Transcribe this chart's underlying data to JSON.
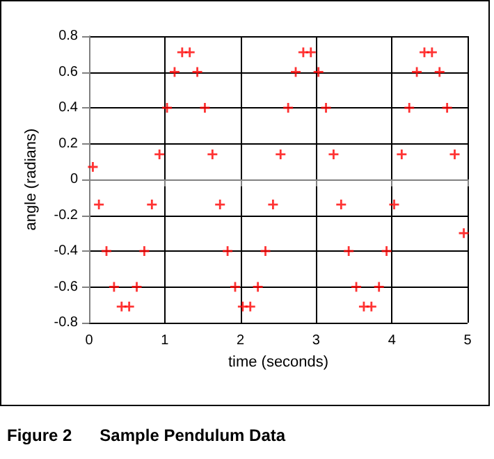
{
  "chart_data": {
    "type": "scatter",
    "title": "Figure 2      Sample Pendulum Data",
    "xlabel": "time (seconds)",
    "ylabel": "angle (radians)",
    "marker": "cross",
    "grid": true,
    "xlim": [
      0,
      5
    ],
    "xticks": [
      0,
      1,
      2,
      3,
      4,
      5
    ],
    "ylim": [
      -0.8,
      0.8
    ],
    "yticks": [
      -0.8,
      -0.6,
      -0.4,
      -0.2,
      0,
      0.2,
      0.4,
      0.6,
      0.8
    ],
    "series": [
      {
        "color": "#ff0000",
        "x": [
          0.05,
          0.13,
          0.23,
          0.33,
          0.43,
          0.53,
          0.63,
          0.73,
          0.83,
          0.93,
          1.03,
          1.13,
          1.23,
          1.33,
          1.43,
          1.53,
          1.63,
          1.73,
          1.83,
          1.93,
          2.03,
          2.13,
          2.23,
          2.33,
          2.43,
          2.53,
          2.63,
          2.73,
          2.83,
          2.93,
          3.03,
          3.13,
          3.23,
          3.33,
          3.43,
          3.53,
          3.63,
          3.73,
          3.83,
          3.93,
          4.03,
          4.13,
          4.23,
          4.33,
          4.43,
          4.53,
          4.63,
          4.73,
          4.83,
          4.95
        ],
        "values": [
          0.07,
          -0.14,
          -0.4,
          -0.6,
          -0.71,
          -0.71,
          -0.6,
          -0.4,
          -0.14,
          0.14,
          0.4,
          0.6,
          0.71,
          0.71,
          0.6,
          0.4,
          0.14,
          -0.14,
          -0.4,
          -0.6,
          -0.71,
          -0.71,
          -0.6,
          -0.4,
          -0.14,
          0.14,
          0.4,
          0.6,
          0.71,
          0.71,
          0.6,
          0.4,
          0.14,
          -0.14,
          -0.4,
          -0.6,
          -0.71,
          -0.71,
          -0.6,
          -0.4,
          -0.14,
          0.14,
          0.4,
          0.6,
          0.71,
          0.71,
          0.6,
          0.4,
          0.14,
          -0.3
        ]
      }
    ]
  }
}
